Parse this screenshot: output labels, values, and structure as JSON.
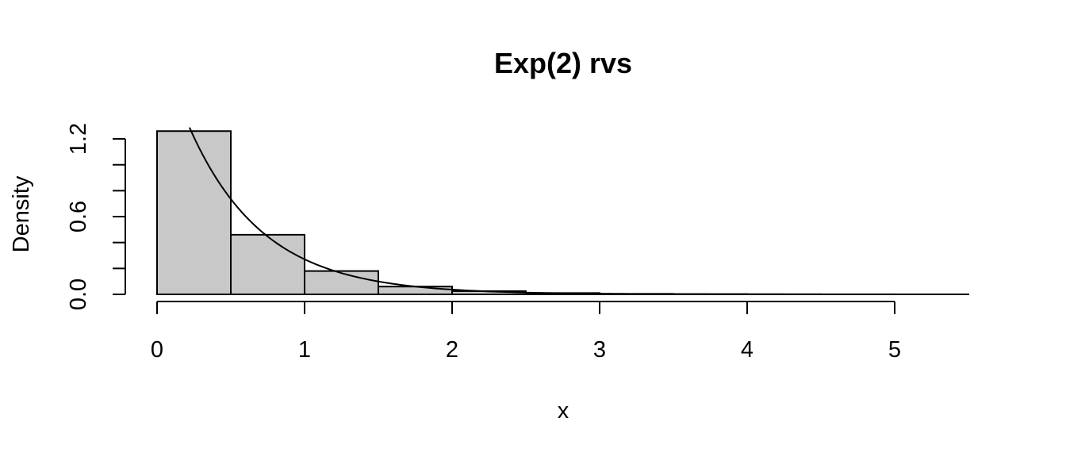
{
  "chart_data": {
    "type": "bar",
    "title": "Exp(2) rvs",
    "xlabel": "x",
    "ylabel": "Density",
    "bins": [
      {
        "start": 0.0,
        "end": 0.5,
        "density": 1.26
      },
      {
        "start": 0.5,
        "end": 1.0,
        "density": 0.46
      },
      {
        "start": 1.0,
        "end": 1.5,
        "density": 0.18
      },
      {
        "start": 1.5,
        "end": 2.0,
        "density": 0.06
      },
      {
        "start": 2.0,
        "end": 2.5,
        "density": 0.025
      },
      {
        "start": 2.5,
        "end": 3.0,
        "density": 0.01
      },
      {
        "start": 3.0,
        "end": 3.5,
        "density": 0.004
      },
      {
        "start": 3.5,
        "end": 4.0,
        "density": 0.002
      },
      {
        "start": 4.0,
        "end": 4.5,
        "density": 0.001
      },
      {
        "start": 4.5,
        "end": 5.0,
        "density": 0.0005
      },
      {
        "start": 5.0,
        "end": 5.5,
        "density": 0.0003
      }
    ],
    "overlay_curve": {
      "type": "line",
      "function": "exponential_density",
      "rate": 2,
      "x_start": 0.22,
      "x_end": 5.5
    },
    "xlim": [
      0,
      5.5
    ],
    "ylim": [
      0,
      1.3
    ],
    "x_ticks": [
      0,
      1,
      2,
      3,
      4,
      5
    ],
    "x_tick_labels": [
      "0",
      "1",
      "2",
      "3",
      "4",
      "5"
    ],
    "y_ticks": [
      0,
      0.2,
      0.4,
      0.6,
      0.8,
      1.0,
      1.2
    ],
    "y_tick_labels": [
      "0.0",
      "",
      "",
      "0.6",
      "",
      "",
      "1.2"
    ],
    "grid": false,
    "legend": "none"
  }
}
